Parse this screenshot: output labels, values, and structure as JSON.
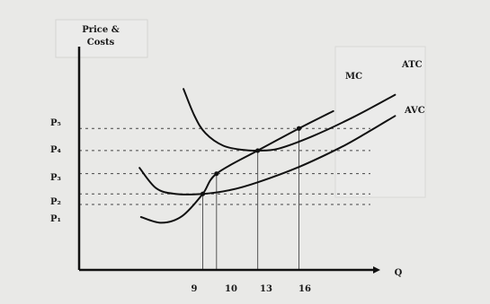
{
  "chart_data": {
    "type": "line",
    "title": "",
    "ylabel_line1": "Price &",
    "ylabel_line2": "Costs",
    "xlabel": "Q",
    "x_ticks": [
      "9",
      "10",
      "13",
      "16"
    ],
    "x_tick_values": [
      9,
      10,
      13,
      16
    ],
    "y_ticks": [
      {
        "label": "P₁",
        "value": 1.0
      },
      {
        "label": "P₂",
        "value": 1.55
      },
      {
        "label": "P₃",
        "value": 2.6
      },
      {
        "label": "P₄",
        "value": 3.8
      },
      {
        "label": "P₅",
        "value": 4.95
      }
    ],
    "series": [
      {
        "name": "MC",
        "x": [
          4.5,
          6,
          7.5,
          9,
          10,
          13,
          16,
          18.5
        ],
        "y": [
          0.35,
          0.05,
          0.4,
          1.55,
          2.6,
          3.8,
          4.95,
          5.85
        ]
      },
      {
        "name": "ATC",
        "x": [
          7.6,
          8.4,
          9.2,
          10.5,
          12,
          13,
          14.5,
          17,
          20,
          23
        ],
        "y": [
          7.0,
          5.6,
          4.7,
          4.05,
          3.83,
          3.8,
          3.9,
          4.55,
          5.55,
          6.7
        ]
      },
      {
        "name": "AVC",
        "x": [
          4.4,
          5.6,
          7,
          9,
          11,
          13,
          16,
          19,
          21,
          23
        ],
        "y": [
          2.9,
          1.85,
          1.55,
          1.55,
          1.75,
          2.15,
          2.95,
          3.95,
          4.75,
          5.6
        ]
      }
    ],
    "guide_points": [
      {
        "x": 9,
        "y": 1.55
      },
      {
        "x": 10,
        "y": 2.6
      },
      {
        "x": 13,
        "y": 3.8
      },
      {
        "x": 16,
        "y": 4.95
      }
    ],
    "xlim": [
      0,
      25
    ],
    "ylim": [
      -2.4,
      9.2
    ],
    "grid": false,
    "legend": "none"
  }
}
